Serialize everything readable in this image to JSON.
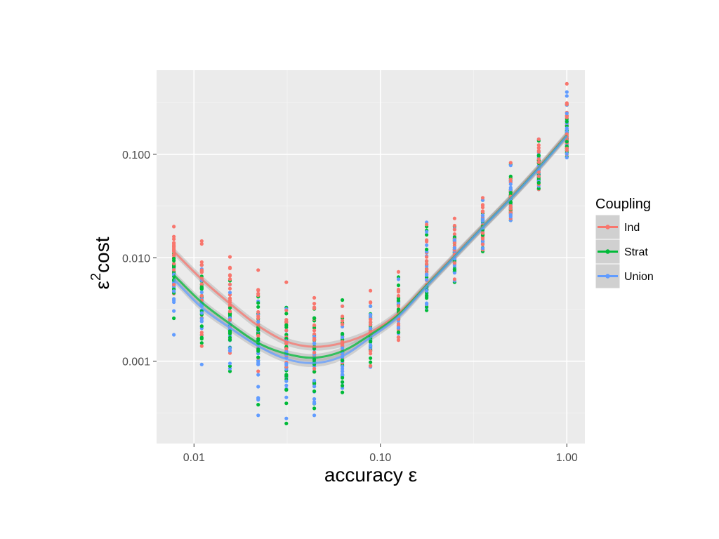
{
  "chart_data": {
    "type": "scatter",
    "title": "",
    "xlabel": "accuracy ε",
    "ylabel_main": "ε",
    "ylabel_sup": "2",
    "ylabel_rest": "cost",
    "x_scale": "log",
    "y_scale": "log",
    "xlim": [
      0.0063,
      1.25
    ],
    "ylim": [
      0.00016,
      0.65
    ],
    "x_ticks": [
      0.01,
      0.1,
      1.0
    ],
    "x_tick_labels": [
      "0.01",
      "0.10",
      "1.00"
    ],
    "y_ticks": [
      0.001,
      0.01,
      0.1
    ],
    "y_tick_labels": [
      "0.001",
      "0.010",
      "0.100"
    ],
    "grid": true,
    "legend": {
      "title": "Coupling",
      "position": "right"
    },
    "x": [
      0.0078,
      0.011,
      0.0156,
      0.0221,
      0.0313,
      0.0442,
      0.0625,
      0.0884,
      0.125,
      0.177,
      0.25,
      0.354,
      0.5,
      0.707,
      1.0
    ],
    "series": [
      {
        "name": "Ind",
        "color": "#F8766D",
        "smooth": [
          0.0115,
          0.0062,
          0.0036,
          0.0022,
          0.00155,
          0.00138,
          0.0015,
          0.0019,
          0.0029,
          0.0055,
          0.0105,
          0.02,
          0.038,
          0.075,
          0.155
        ],
        "ranges": [
          [
            0.0045,
            0.02
          ],
          [
            0.0014,
            0.0145
          ],
          [
            0.0012,
            0.0102
          ],
          [
            0.0008,
            0.0076
          ],
          [
            0.0007,
            0.0058
          ],
          [
            0.0006,
            0.0041
          ],
          [
            0.0008,
            0.0034
          ],
          [
            0.0009,
            0.0048
          ],
          [
            0.0016,
            0.0073
          ],
          [
            0.0034,
            0.021
          ],
          [
            0.0062,
            0.024
          ],
          [
            0.012,
            0.038
          ],
          [
            0.024,
            0.083
          ],
          [
            0.046,
            0.14
          ],
          [
            0.1,
            0.48
          ]
        ]
      },
      {
        "name": "Strat",
        "color": "#00BA38",
        "smooth": [
          0.0068,
          0.0037,
          0.0023,
          0.0015,
          0.00118,
          0.00108,
          0.00125,
          0.0018,
          0.0028,
          0.0054,
          0.0103,
          0.0198,
          0.0375,
          0.074,
          0.152
        ],
        "ranges": [
          [
            0.0026,
            0.011
          ],
          [
            0.0015,
            0.0085
          ],
          [
            0.0008,
            0.006
          ],
          [
            0.00038,
            0.0042
          ],
          [
            0.00025,
            0.0033
          ],
          [
            0.00035,
            0.0032
          ],
          [
            0.0005,
            0.0039
          ],
          [
            0.0009,
            0.0034
          ],
          [
            0.0017,
            0.0065
          ],
          [
            0.0031,
            0.02
          ],
          [
            0.0058,
            0.02
          ],
          [
            0.0115,
            0.036
          ],
          [
            0.023,
            0.08
          ],
          [
            0.046,
            0.135
          ],
          [
            0.095,
            0.3
          ]
        ]
      },
      {
        "name": "Union",
        "color": "#619CFF",
        "smooth": [
          0.0062,
          0.0033,
          0.0021,
          0.0014,
          0.00105,
          0.00096,
          0.00112,
          0.0017,
          0.0027,
          0.0053,
          0.0102,
          0.0196,
          0.0372,
          0.073,
          0.15
        ],
        "ranges": [
          [
            0.0018,
            0.01
          ],
          [
            0.00093,
            0.0085
          ],
          [
            0.00085,
            0.0055
          ],
          [
            0.0003,
            0.0038
          ],
          [
            0.00028,
            0.0032
          ],
          [
            0.0003,
            0.0033
          ],
          [
            0.00055,
            0.0034
          ],
          [
            0.00088,
            0.0034
          ],
          [
            0.0017,
            0.0062
          ],
          [
            0.0033,
            0.022
          ],
          [
            0.006,
            0.019
          ],
          [
            0.012,
            0.036
          ],
          [
            0.023,
            0.078
          ],
          [
            0.046,
            0.14
          ],
          [
            0.093,
            0.4
          ]
        ]
      }
    ]
  }
}
